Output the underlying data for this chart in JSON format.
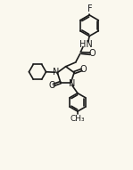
{
  "bg_color": "#faf8ee",
  "line_color": "#1a1a1a",
  "line_width": 1.2,
  "font_size": 7.0,
  "xlim": [
    -3.5,
    3.0
  ],
  "ylim": [
    -1.0,
    10.5
  ]
}
